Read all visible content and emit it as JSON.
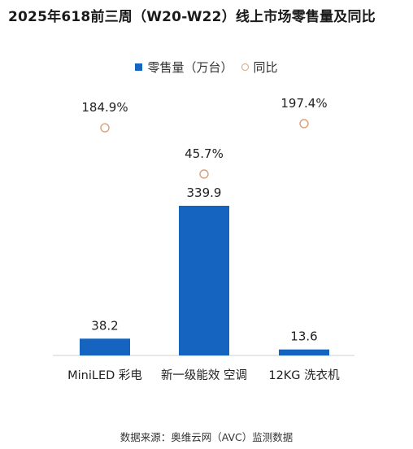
{
  "title": "2025年618前三周（W20-W22）线上市场零售量及同比",
  "source": "数据来源：奥维云网（AVC）监测数据",
  "colors": {
    "bar": "#1565C0",
    "marker": "#D9A07A",
    "axis": "#CFCFCF"
  },
  "chart_data": {
    "type": "bar",
    "categories": [
      "MiniLED 彩电",
      "新一级能效 空调",
      "12KG 洗衣机"
    ],
    "series": [
      {
        "name": "零售量（万台）",
        "type": "bar",
        "values": [
          38.2,
          339.9,
          13.6
        ]
      },
      {
        "name": "同比",
        "type": "scatter",
        "values": [
          184.9,
          45.7,
          197.4
        ],
        "labels": [
          "184.9%",
          "45.7%",
          "197.4%"
        ]
      }
    ],
    "legend_position": "top",
    "grid": false
  }
}
